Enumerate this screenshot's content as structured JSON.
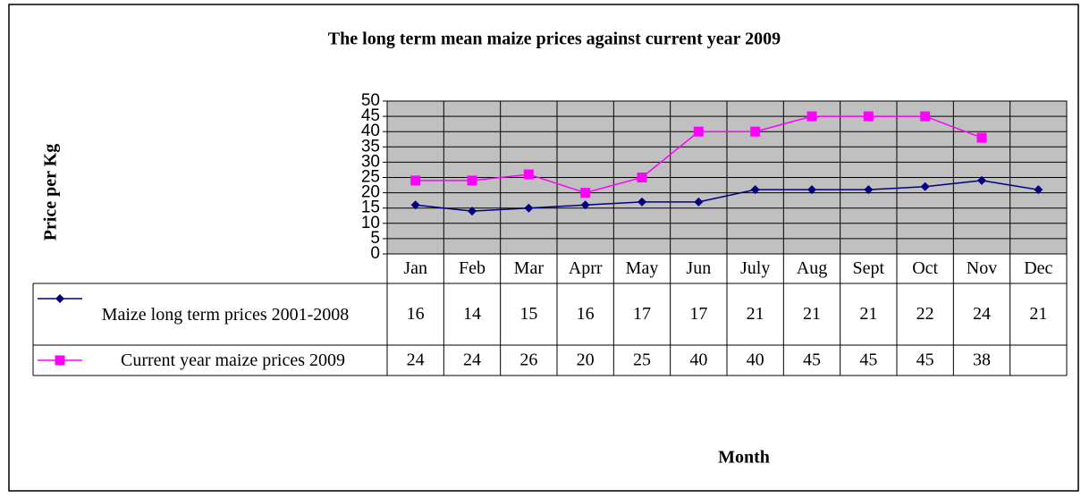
{
  "chart_data": {
    "type": "line",
    "title": "The long term mean maize prices against current year 2009",
    "y_label": "Price per Kg",
    "x_label": "Month",
    "categories": [
      "Jan",
      "Feb",
      "Mar",
      "Aprr",
      "May",
      "Jun",
      "July",
      "Aug",
      "Sept",
      "Oct",
      "Nov",
      "Dec"
    ],
    "series": [
      {
        "name": "Maize long term prices 2001-2008",
        "color": "#000080",
        "marker": "diamond",
        "values": [
          16,
          14,
          15,
          16,
          17,
          17,
          21,
          21,
          21,
          22,
          24,
          21
        ]
      },
      {
        "name": "Current year maize prices 2009",
        "color": "#ff00ff",
        "marker": "square",
        "values": [
          24,
          24,
          26,
          20,
          25,
          40,
          40,
          45,
          45,
          45,
          38,
          null
        ]
      }
    ],
    "ylim": [
      0,
      50
    ],
    "yticks": [
      0,
      5,
      10,
      15,
      20,
      25,
      30,
      35,
      40,
      45,
      50
    ],
    "grid": true,
    "plot_background": "#c0c0c0"
  }
}
